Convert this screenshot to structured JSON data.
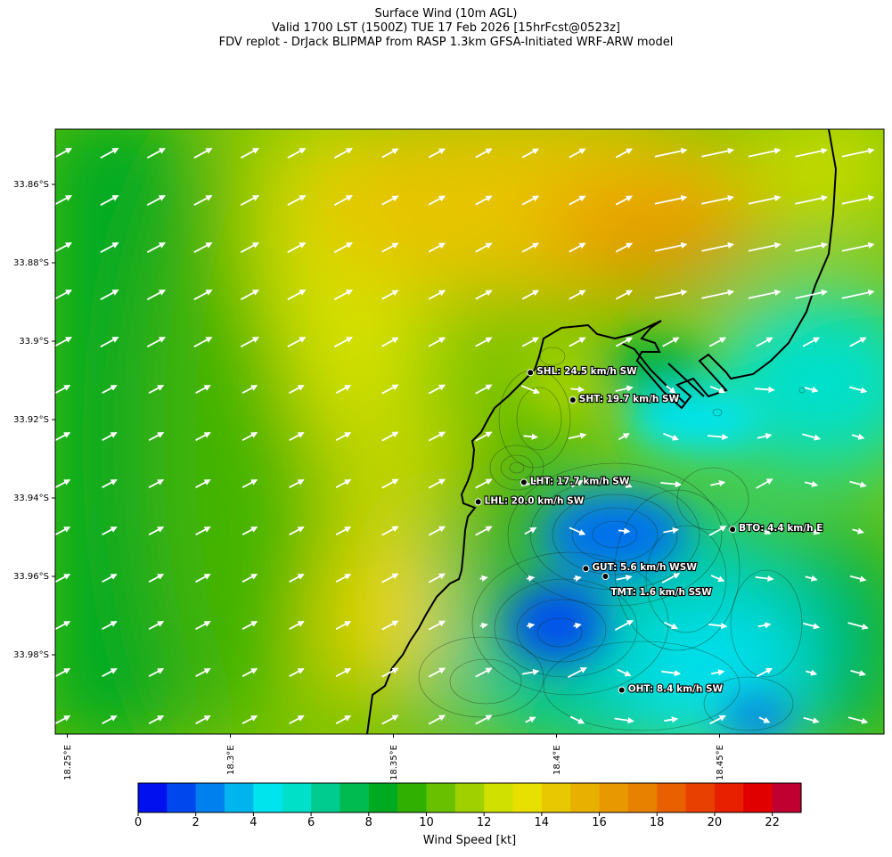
{
  "titles": [
    "Surface Wind (10m AGL)",
    "Valid 1700 LST (1500Z) TUE 17 Feb 2026 [15hrFcst@0523z]",
    "FDV replot - DrJack BLIPMAP from RASP 1.3km GFSA-Initiated WRF-ARW model"
  ],
  "axes": {
    "lat_ticks": [
      "33.86°S",
      "33.88°S",
      "33.9°S",
      "33.92°S",
      "33.94°S",
      "33.96°S",
      "33.98°S"
    ],
    "lon_ticks": [
      "18.25°E",
      "18.3°E",
      "18.35°E",
      "18.4°E",
      "18.45°E"
    ]
  },
  "colorbar": {
    "label": "Wind Speed [kt]",
    "ticks": [
      "0",
      "2",
      "4",
      "6",
      "8",
      "10",
      "12",
      "14",
      "16",
      "18",
      "20",
      "22"
    ],
    "colors": [
      "#0010ee",
      "#0048ee",
      "#0080ee",
      "#00b4ee",
      "#00e4ee",
      "#00e0c8",
      "#00cc90",
      "#00bc50",
      "#00aa20",
      "#30b000",
      "#68c000",
      "#a0d000",
      "#d0e000",
      "#e8e000",
      "#e8c800",
      "#e8b000",
      "#e89800",
      "#e88000",
      "#e86000",
      "#e84000",
      "#e82000",
      "#e00000",
      "#c00030"
    ]
  },
  "stations": [
    {
      "code": "SHL",
      "label": "SHL: 24.5 km/h SW",
      "lon": 18.392,
      "lat": -33.908
    },
    {
      "code": "SHT",
      "label": "SHT: 19.7 km/h SW",
      "lon": 18.405,
      "lat": -33.915
    },
    {
      "code": "LHT",
      "label": "LHT: 17.7 km/h SW",
      "lon": 18.39,
      "lat": -33.936
    },
    {
      "code": "LHL",
      "label": "LHL: 20.0 km/h SW",
      "lon": 18.376,
      "lat": -33.941
    },
    {
      "code": "BTO",
      "label": "BTO: 4.4 km/h E",
      "lon": 18.454,
      "lat": -33.948
    },
    {
      "code": "GUT",
      "label": "GUT: 5.6 km/h WSW",
      "lon": 18.409,
      "lat": -33.958
    },
    {
      "code": "TMT",
      "label": "TMT: 1.6 km/h SSW",
      "lon": 18.415,
      "lat": -33.96
    },
    {
      "code": "OHT",
      "label": "OHT: 8.4 km/h SW",
      "lon": 18.42,
      "lat": -33.989
    }
  ]
}
